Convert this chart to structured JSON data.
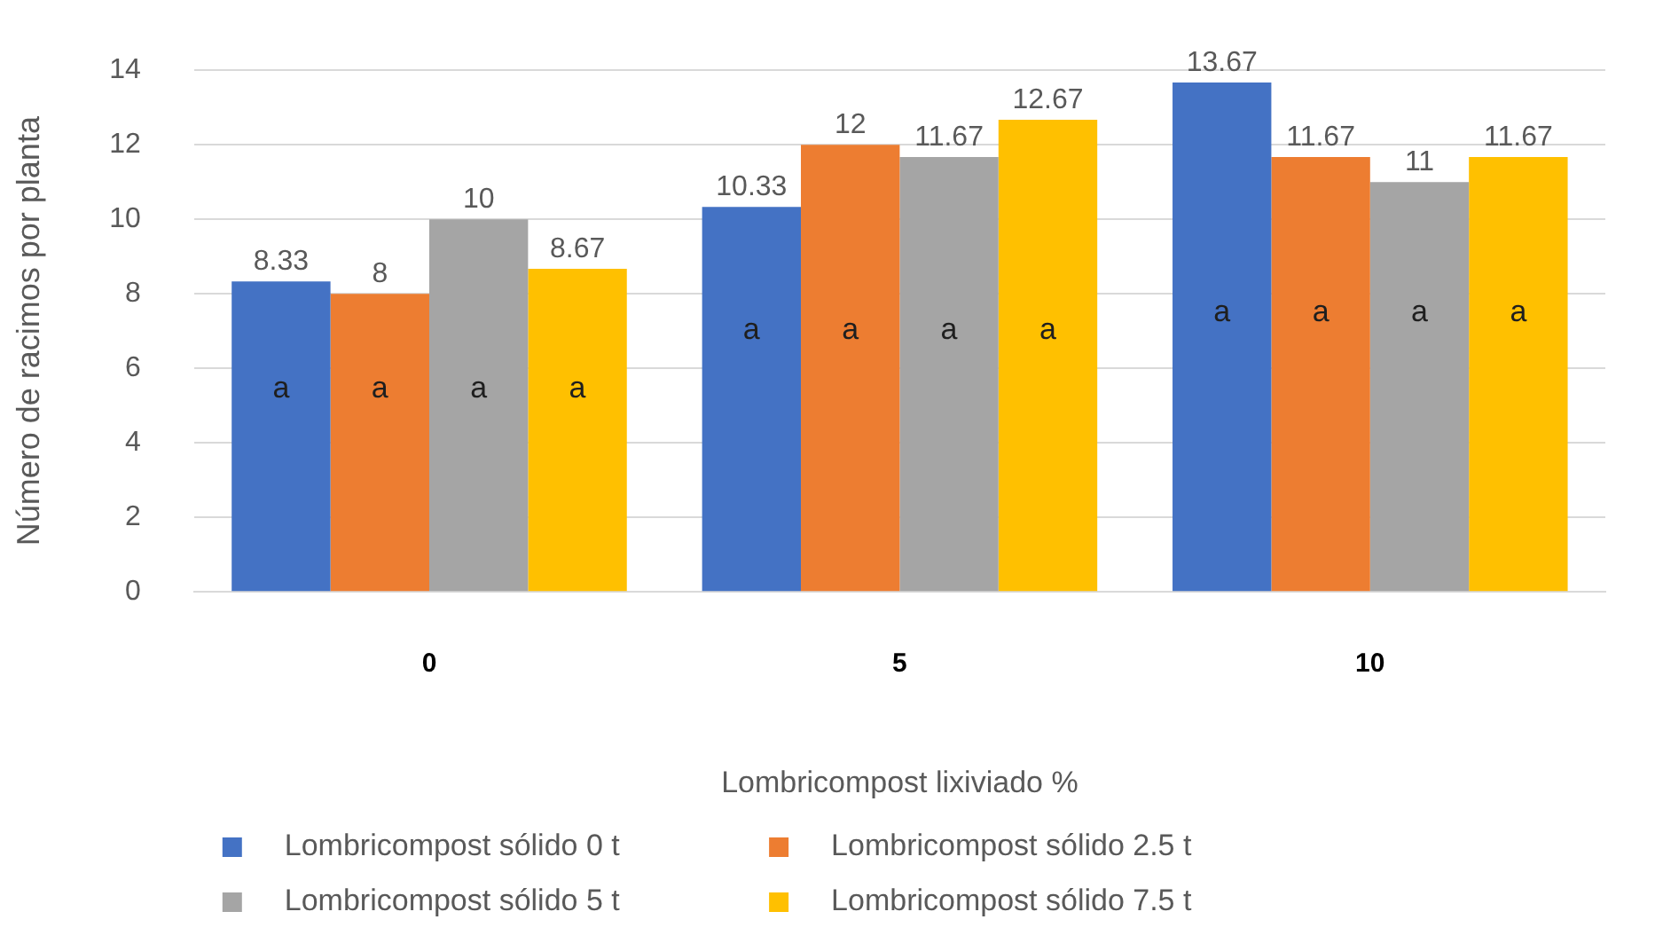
{
  "chart_data": {
    "type": "bar",
    "xlabel": "Lombricompost lixiviado %",
    "ylabel": "Número de racimos por planta",
    "categories": [
      "0",
      "5",
      "10"
    ],
    "series": [
      {
        "name": "Lombricompost sólido 0 t",
        "color": "#4472c4",
        "values": [
          8.33,
          10.33,
          13.67
        ]
      },
      {
        "name": "Lombricompost sólido 2.5 t",
        "color": "#ed7d31",
        "values": [
          8,
          12,
          11.67
        ]
      },
      {
        "name": "Lombricompost sólido 5 t",
        "color": "#a5a5a5",
        "values": [
          10,
          11.67,
          11
        ]
      },
      {
        "name": "Lombricompost sólido 7.5 t",
        "color": "#ffc000",
        "values": [
          8.67,
          12.67,
          11.67
        ]
      }
    ],
    "ylim": [
      0,
      14
    ],
    "yticks": [
      0,
      2,
      4,
      6,
      8,
      10,
      12,
      14
    ],
    "grid": "y",
    "legend": "bottom",
    "data_labels": true,
    "annotations": [
      "a",
      "a",
      "a",
      "a",
      "a",
      "a",
      "a",
      "a",
      "a",
      "a",
      "a",
      "a"
    ]
  }
}
